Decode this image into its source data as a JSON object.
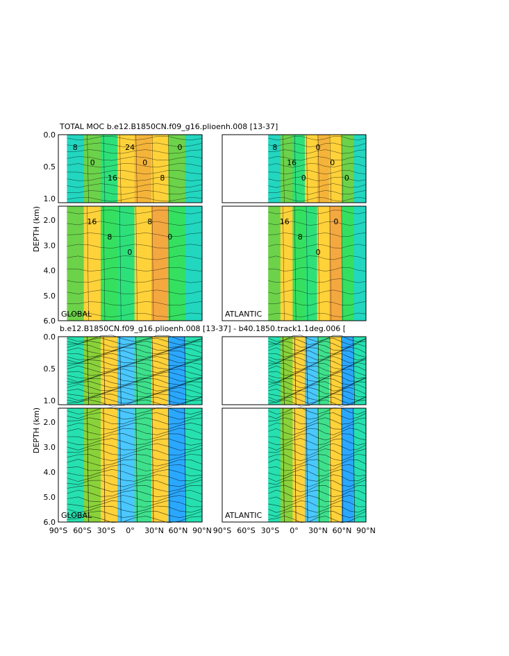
{
  "figure": {
    "title_top": "TOTAL MOC b.e12.B1850CN.f09_g16.plioenh.008 [13-37]",
    "title_bottom": "b.e12.B1850CN.f09_g16.plioenh.008 [13-37] - b40.1850.track1.1deg.006 [",
    "ylabel": "DEPTH (km)",
    "panel_labels": [
      "GLOBAL",
      "ATLANTIC",
      "GLOBAL",
      "ATLANTIC"
    ],
    "y_ticks_upper": [
      "0.0",
      "0.5",
      "1.0"
    ],
    "y_ticks_lower": [
      "2.0",
      "3.0",
      "4.0",
      "5.0",
      "6.0"
    ],
    "x_ticks_left": [
      "90°S",
      "60°S",
      "30°S",
      "0°",
      "30°N",
      "60°N",
      "90°N"
    ],
    "x_ticks_right": [
      "90°S",
      "60°S",
      "30°S",
      "0°",
      "30°N",
      "60°N",
      "90°N"
    ],
    "contour_labels_global_top": [
      "8",
      "0",
      "16",
      "24",
      "0",
      "8",
      "0"
    ],
    "contour_labels_global_mid": [
      "16",
      "8",
      "0",
      "8",
      "0"
    ],
    "contour_labels_atlantic_top": [
      "8",
      "16",
      "0",
      "0",
      "0",
      "0"
    ],
    "contour_labels_atlantic_mid": [
      "16",
      "8",
      "0",
      "0"
    ]
  },
  "chart_data": [
    {
      "type": "heatmap",
      "title": "TOTAL MOC b.e12.B1850CN.f09_g16.plioenh.008 [13-37]",
      "panel": "GLOBAL",
      "xlabel": "",
      "ylabel": "DEPTH (km)",
      "xlim": [
        -90,
        90
      ],
      "ylim": [
        6.0,
        0.0
      ],
      "contour_levels_labeled": [
        0,
        8,
        16,
        24
      ]
    },
    {
      "type": "heatmap",
      "title": "TOTAL MOC b.e12.B1850CN.f09_g16.plioenh.008 [13-37]",
      "panel": "ATLANTIC",
      "xlabel": "",
      "ylabel": "DEPTH (km)",
      "xlim": [
        -90,
        90
      ],
      "ylim": [
        6.0,
        0.0
      ],
      "contour_levels_labeled": [
        0,
        8,
        16
      ]
    },
    {
      "type": "heatmap",
      "title": "b.e12.B1850CN.f09_g16.plioenh.008 [13-37] - b40.1850.track1.1deg.006 [",
      "panel": "GLOBAL",
      "xlabel": "",
      "ylabel": "DEPTH (km)",
      "xlim": [
        -90,
        90
      ],
      "ylim": [
        6.0,
        0.0
      ]
    },
    {
      "type": "heatmap",
      "title": "b.e12.B1850CN.f09_g16.plioenh.008 [13-37] - b40.1850.track1.1deg.006 [",
      "panel": "ATLANTIC",
      "xlabel": "",
      "ylabel": "DEPTH (km)",
      "xlim": [
        -90,
        90
      ],
      "ylim": [
        6.0,
        0.0
      ]
    }
  ]
}
